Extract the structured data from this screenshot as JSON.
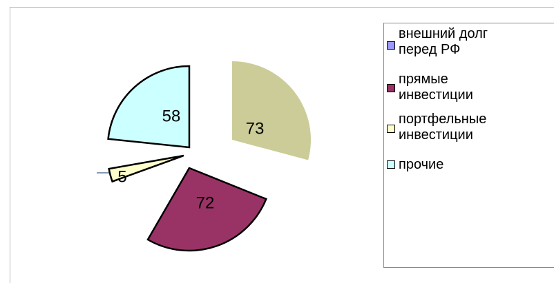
{
  "chart_data": {
    "type": "pie",
    "slices": [
      {
        "label": "внешний долг перед РФ",
        "value": 0,
        "data_label": "",
        "color": "#9999ff"
      },
      {
        "label": "прямые инвестиции",
        "value": 72,
        "data_label": "72",
        "color": "#993366"
      },
      {
        "label": "портфельные инвестиции",
        "value": 5,
        "data_label": "5",
        "color": "#ffffcc"
      },
      {
        "label": "прочие",
        "value": 58,
        "data_label": "58",
        "color": "#ccffff"
      },
      {
        "label": "",
        "value": 73,
        "data_label": "73",
        "color": "#cccc99"
      }
    ],
    "legend_position": "right",
    "exploded": true
  },
  "legend": {
    "items": [
      {
        "line1": "внешний долг",
        "line2": "перед РФ",
        "color": "#9999ff"
      },
      {
        "line1": "прямые",
        "line2": "инвестиции",
        "color": "#993366"
      },
      {
        "line1": "портфельные",
        "line2": "инвестиции",
        "color": "#ffffcc"
      },
      {
        "line1": "прочие",
        "line2": "",
        "color": "#ccffff"
      }
    ]
  }
}
